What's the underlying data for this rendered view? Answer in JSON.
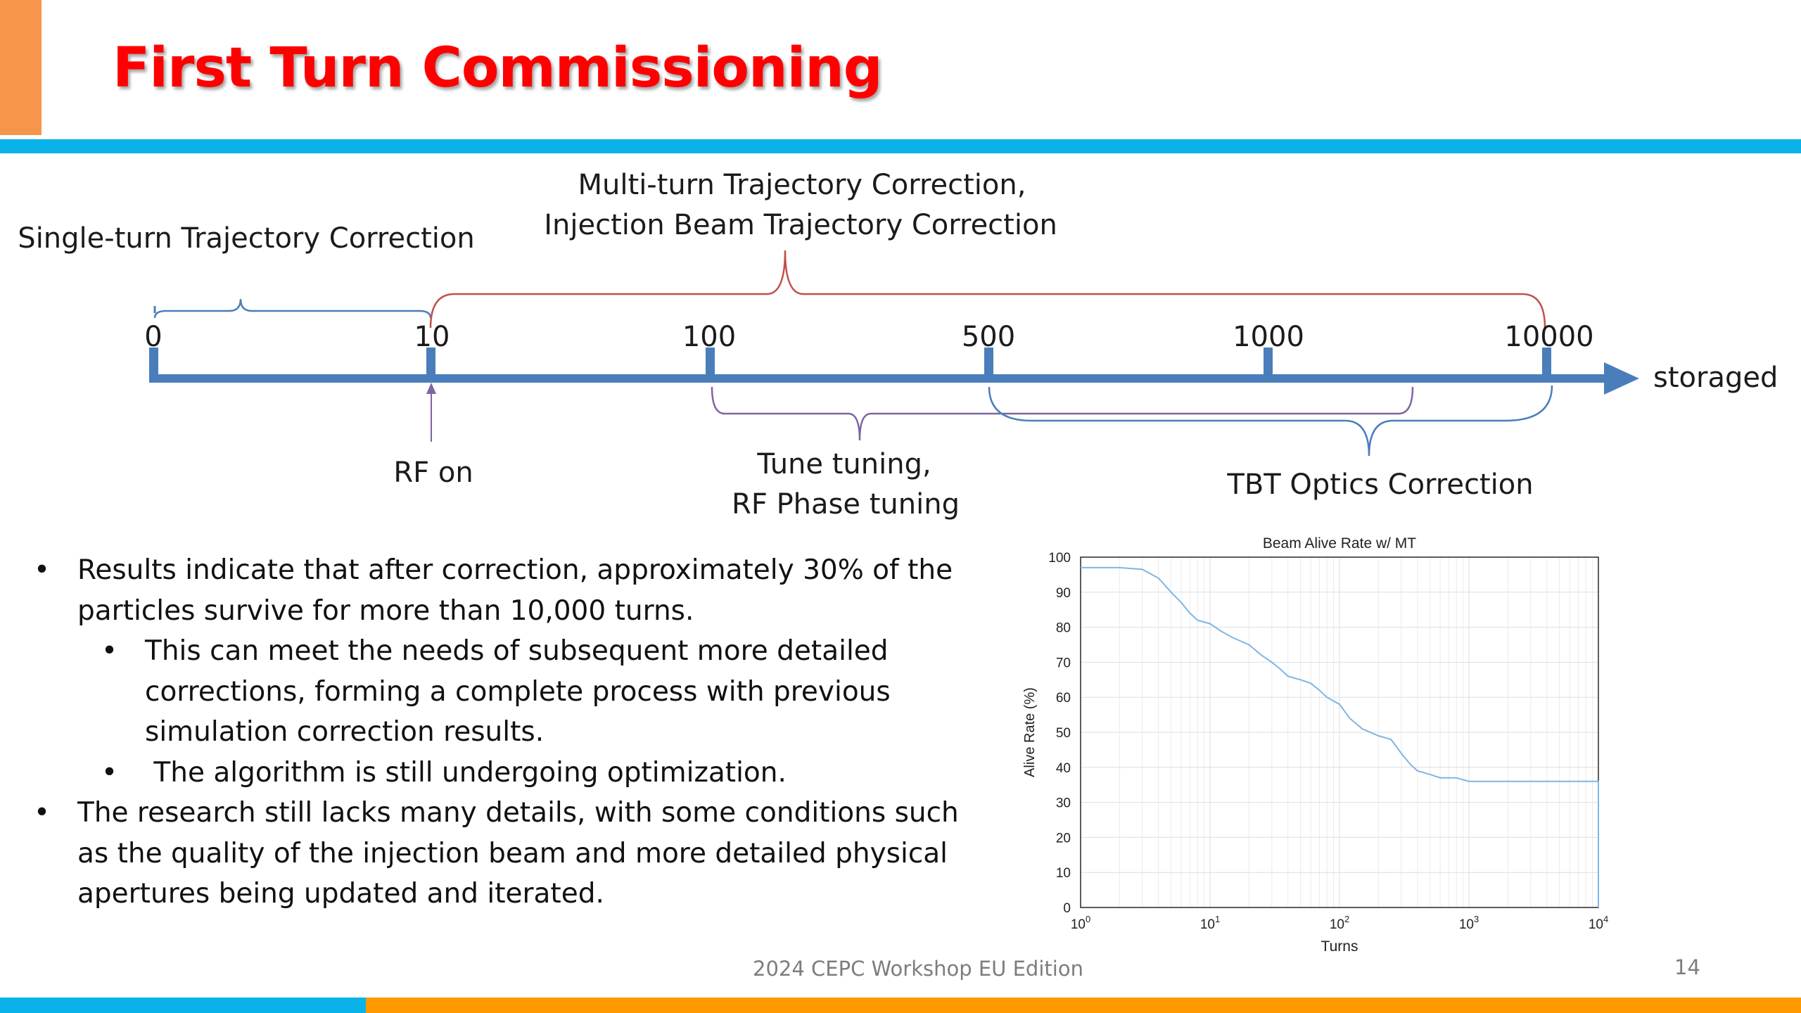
{
  "slide": {
    "title": "First Turn Commissioning",
    "colors": {
      "title": "#ff0000",
      "rule_blue": "#0ab2ea",
      "accent_orange": "#f7954a",
      "bar_orange": "#ff9900",
      "axis_blue": "#4a7ebb",
      "bracket_red": "#c0504d",
      "bracket_purple": "#8064a2",
      "curve": "#7eb6e4"
    }
  },
  "timeline": {
    "ticks": [
      "0",
      "10",
      "100",
      "500",
      "1000",
      "10000"
    ],
    "end_label": "storaged",
    "single_turn": "Single-turn Trajectory Correction",
    "multi_turn_line1": "Multi-turn Trajectory Correction,",
    "multi_turn_line2": "Injection Beam Trajectory Correction",
    "rf_on": "RF on",
    "tune_line1": "Tune tuning,",
    "tune_line2": "RF Phase tuning",
    "tbt": "TBT Optics Correction"
  },
  "bullets": [
    {
      "level": 1,
      "lines": [
        "Results indicate that after correction, approximately 30% of the",
        "particles survive for more than 10,000 turns."
      ]
    },
    {
      "level": 2,
      "lines": [
        "This can meet the needs of subsequent more detailed",
        "corrections, forming a complete process with previous",
        "simulation correction results."
      ]
    },
    {
      "level": 2,
      "lines": [
        " The algorithm is still undergoing optimization."
      ]
    },
    {
      "level": 1,
      "lines": [
        "The research still lacks many details, with some conditions such",
        "as the quality of the injection beam and more detailed physical",
        "apertures being updated and iterated."
      ]
    }
  ],
  "bullet_symbol": "•",
  "chart_data": {
    "type": "line",
    "title": "Beam Alive Rate w/ MT",
    "xlabel": "Turns",
    "ylabel": "Alive Rate (%)",
    "xscale": "log",
    "xlim": [
      1,
      10000
    ],
    "ylim": [
      0,
      100
    ],
    "xticks": [
      {
        "base": "10",
        "exp": "0"
      },
      {
        "base": "10",
        "exp": "1"
      },
      {
        "base": "10",
        "exp": "2"
      },
      {
        "base": "10",
        "exp": "3"
      },
      {
        "base": "10",
        "exp": "4"
      }
    ],
    "yticks": [
      "0",
      "10",
      "20",
      "30",
      "40",
      "50",
      "60",
      "70",
      "80",
      "90",
      "100"
    ],
    "grid": true,
    "series": [
      {
        "x": [
          1,
          2,
          3,
          4,
          5,
          6,
          7,
          8,
          10,
          12,
          15,
          20,
          25,
          30,
          35,
          40,
          50,
          60,
          70,
          80,
          100,
          120,
          150,
          200,
          250,
          300,
          350,
          400,
          500,
          600,
          800,
          1000,
          2000,
          5000,
          10000
        ],
        "y": [
          97,
          97,
          96.5,
          94,
          90,
          87,
          84,
          82,
          81,
          79,
          77,
          75,
          72,
          70,
          68,
          66,
          65,
          64,
          62,
          60,
          58,
          54,
          51,
          49,
          48,
          44,
          41,
          39,
          38,
          37,
          37,
          36,
          36,
          36,
          36
        ]
      }
    ]
  },
  "footer": {
    "text": "2024 CEPC Workshop EU Edition",
    "page": "14"
  }
}
